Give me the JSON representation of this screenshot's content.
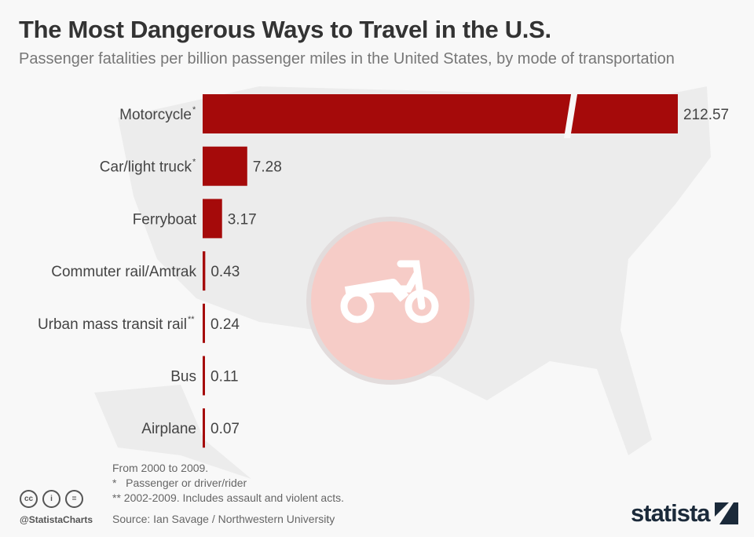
{
  "header": {
    "title": "The Most Dangerous Ways to Travel in the U.S.",
    "subtitle": "Passenger fatalities per billion passenger miles in the United States, by mode of transportation"
  },
  "chart_data": {
    "type": "bar",
    "orientation": "horizontal",
    "categories": [
      "Motorcycle*",
      "Car/light truck*",
      "Ferryboat",
      "Commuter rail/Amtrak",
      "Urban mass transit rail**",
      "Bus",
      "Airplane"
    ],
    "values": [
      212.57,
      7.28,
      3.17,
      0.43,
      0.24,
      0.11,
      0.07
    ],
    "value_labels": [
      "212.57",
      "7.28",
      "3.17",
      "0.43",
      "0.24",
      "0.11",
      "0.07"
    ],
    "axis_break": "Motorcycle bar truncated",
    "bar_color": "#a50a0a",
    "grid": false
  },
  "icon": "motorcycle-icon",
  "footer": {
    "note1": "From 2000 to 2009.",
    "note2": "*   Passenger or driver/rider",
    "note3": "** 2002-2009. Includes assault and violent acts.",
    "source": "Source: Ian Savage / Northwestern University",
    "handle": "@StatistaCharts",
    "logo": "statista"
  },
  "license_icons": [
    "cc",
    "i",
    "="
  ]
}
